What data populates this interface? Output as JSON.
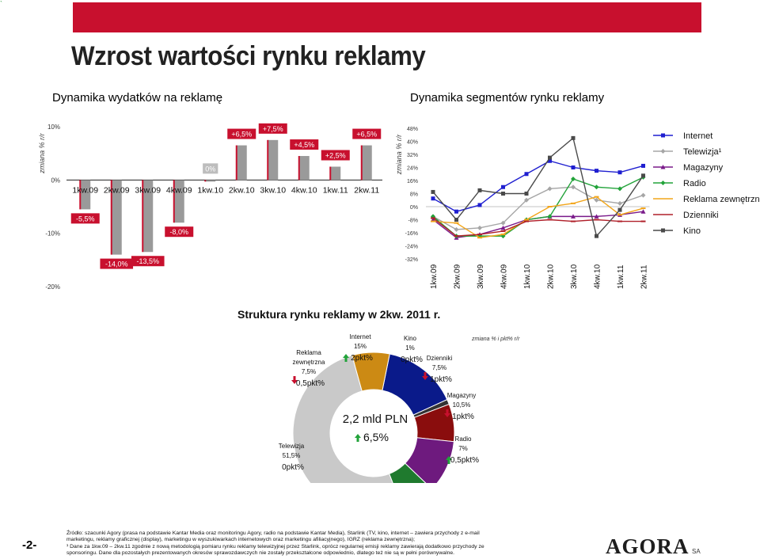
{
  "header": {
    "title": "Wzrost wartości rynku reklamy",
    "subtitle_left": "Dynamika wydatków na reklamę",
    "subtitle_right": "Dynamika segmentów rynku reklamy",
    "corner_mark": "`"
  },
  "colors": {
    "bar_accent": "#c8102e",
    "bar_fill": "#9a9a9a",
    "Internet": "#1f1fd0",
    "Telewizja": "#a6a6a6",
    "Magazyny": "#7a1a8a",
    "Radio": "#22a33a",
    "Reklama zewnętrzna": "#f2a51a",
    "Dzienniki": "#b0202a",
    "Kino": "#4a4a4a"
  },
  "chart_data": [
    {
      "type": "bar",
      "title": "Dynamika wydatków na reklamę",
      "ylabel": "zmiana % r/r",
      "ylim": [
        -20,
        10
      ],
      "yticks": [
        "10%",
        "0%",
        "-10%",
        "-20%"
      ],
      "categories": [
        "1kw.09",
        "2kw.09",
        "3kw.09",
        "4kw.09",
        "1kw.10",
        "2kw.10",
        "3kw.10",
        "4kw.10",
        "1kw.11",
        "2kw.11"
      ],
      "values": [
        -5.5,
        -14.0,
        -13.5,
        -8.0,
        0.0,
        6.5,
        7.5,
        4.5,
        2.5,
        6.5
      ],
      "labels": [
        "-5,5%",
        "-14,0%",
        "-13,5%",
        "-8,0%",
        "0%",
        "+6,5%",
        "+7,5%",
        "+4,5%",
        "+2,5%",
        "+6,5%"
      ]
    },
    {
      "type": "line",
      "title": "Dynamika segmentów rynku reklamy",
      "ylabel": "zmiana % r/r",
      "ylim": [
        -32,
        48
      ],
      "yticks": [
        "48%",
        "40%",
        "32%",
        "24%",
        "16%",
        "8%",
        "0%",
        "-8%",
        "-16%",
        "-24%",
        "-32%"
      ],
      "x": [
        "1kw.09",
        "2kw.09",
        "3kw.09",
        "4kw.09",
        "1kw.10",
        "2kw.10",
        "3kw.10",
        "4kw.10",
        "1kw.11",
        "2kw.11"
      ],
      "legend_position": "right",
      "series": [
        {
          "name": "Internet",
          "marker": "square",
          "values": [
            5,
            -3,
            1,
            12,
            20,
            28,
            24,
            22,
            21,
            25
          ]
        },
        {
          "name": "Telewizja¹",
          "marker": "diamond",
          "values": [
            -6,
            -14,
            -13,
            -10,
            4,
            11,
            12,
            4,
            2,
            7
          ]
        },
        {
          "name": "Magazyny",
          "marker": "triangle",
          "values": [
            -8,
            -19,
            -17,
            -13,
            -8,
            -6,
            -6,
            -6,
            -5,
            -3
          ]
        },
        {
          "name": "Radio",
          "marker": "diamond",
          "values": [
            -6,
            -18,
            -18,
            -18,
            -8,
            -6,
            17,
            12,
            11,
            18
          ]
        },
        {
          "name": "Reklama zewnętrzna",
          "marker": "dash",
          "values": [
            -9,
            -10,
            -19,
            -17,
            -8,
            0,
            2,
            6,
            -5,
            -1
          ]
        },
        {
          "name": "Dzienniki",
          "marker": "dash",
          "values": [
            -7,
            -18,
            -17,
            -15,
            -9,
            -8,
            -9,
            -8,
            -9,
            -9
          ]
        },
        {
          "name": "Kino",
          "marker": "square",
          "values": [
            9,
            -8,
            10,
            8,
            8,
            30,
            42,
            -18,
            -2,
            19
          ]
        }
      ]
    },
    {
      "type": "pie",
      "title": "Struktura rynku reklamy w 2kw. 2011 r.",
      "center_value": "2,2 mld PLN",
      "center_change": "6,5%",
      "legend_note": "zmiana % i pkt% r/r",
      "slices": [
        {
          "name": "Internet",
          "label": "Internet",
          "share": "15%",
          "value": 15,
          "change": "2pkt%",
          "direction": "up",
          "color": "#0a1a8a"
        },
        {
          "name": "Kino",
          "label": "Kino",
          "share": "1%",
          "value": 1,
          "change": "0pkt%",
          "direction": "none",
          "color": "#333333"
        },
        {
          "name": "Dzienniki",
          "label": "Dzienniki",
          "share": "7,5%",
          "value": 7.5,
          "change": "1pkt%",
          "direction": "down",
          "color": "#8a0d0d"
        },
        {
          "name": "Magazyny",
          "label": "Magazyny",
          "share": "10,5%",
          "value": 10.5,
          "change": "1pkt%",
          "direction": "down",
          "color": "#6e1a7e"
        },
        {
          "name": "Radio",
          "label": "Radio",
          "share": "7%",
          "value": 7,
          "change": "0,5pkt%",
          "direction": "up",
          "color": "#1f7a2e"
        },
        {
          "name": "Telewizja",
          "label": "Telewizja",
          "share": "51,5%",
          "value": 51.5,
          "change": "0pkt%",
          "direction": "none",
          "color": "#c9c9c9"
        },
        {
          "name": "Reklama zewnętrzna",
          "label": "Reklama zewnętrzna",
          "share": "7,5%",
          "value": 7.5,
          "change": "0,5pkt%",
          "direction": "down",
          "color": "#cc8a14"
        }
      ]
    }
  ],
  "footer": {
    "page_number": "-2-",
    "notes": [
      "Źródło: szacunki Agory (prasa na podstawie Kantar Media oraz monitoringu Agory, radio na podstawie Kantar Media), Starlink (TV, kino, internet – zawiera przychody z e-mail",
      "marketingu, reklamy graficznej (display), marketingu w wyszukiwarkach internetowych oraz marketingu afiliacyjnego), IGRZ (reklama zewnętrzna);",
      "¹ Dane za 1kw.09 – 2kw.11 zgodnie z nową metodologią pomiaru rynku reklamy telewizyjnej przez Starlink, oprócz regularnej emisji reklamy zawierają dodatkowo przychody ze",
      "sponsoringu. Dane dla pozostałych prezentowanych okresów sprawozdawczych nie zostały przekształcone odpowiednio, dlatego też nie są w pełni porównywalne."
    ],
    "logo_text": "AGORA",
    "logo_suffix": "SA"
  }
}
